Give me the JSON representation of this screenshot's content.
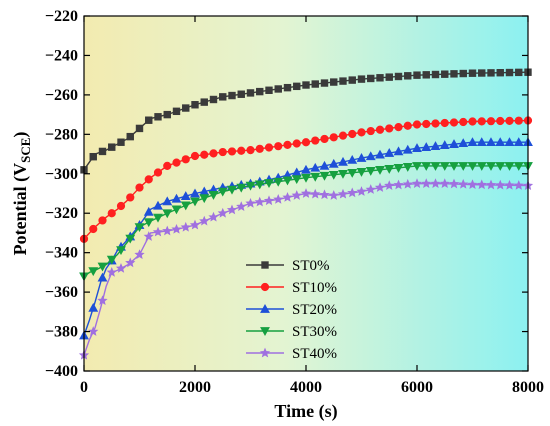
{
  "chart_data": {
    "type": "line",
    "xlabel": "Time (s)",
    "ylabel": {
      "main": "Potential (V",
      "sub": "SCE",
      "close": ")"
    },
    "xlim": [
      0,
      8000
    ],
    "ylim": [
      -400,
      -220
    ],
    "xticks": [
      0,
      2000,
      4000,
      6000,
      8000
    ],
    "yticks": [
      -220,
      -240,
      -260,
      -280,
      -300,
      -320,
      -340,
      -360,
      -380,
      -400
    ],
    "xtick_labels": [
      "0",
      "2000",
      "4000",
      "6000",
      "8000"
    ],
    "ytick_labels": [
      "−220",
      "−240",
      "−260",
      "−280",
      "−300",
      "−320",
      "−340",
      "−360",
      "−380",
      "−400"
    ],
    "grid": false,
    "legend_position": "bottom-center",
    "background": "gradient yellow to cyan",
    "series": [
      {
        "name": "ST0%",
        "color": "#3a3a3a",
        "marker": "square",
        "x": [
          0,
          100,
          200,
          400,
          600,
          800,
          1000,
          1200,
          1500,
          2000,
          2500,
          3000,
          3500,
          4000,
          5000,
          6000,
          7000,
          8000
        ],
        "y": [
          -298,
          -294,
          -290,
          -288,
          -285,
          -282,
          -277,
          -272,
          -270,
          -265,
          -261,
          -259,
          -257,
          -255,
          -252,
          -250,
          -249,
          -248.5
        ]
      },
      {
        "name": "ST10%",
        "color": "#ff2020",
        "marker": "circle",
        "x": [
          0,
          100,
          200,
          400,
          600,
          800,
          1000,
          1200,
          1500,
          2000,
          2500,
          3000,
          3500,
          4000,
          5000,
          6000,
          7000,
          8000
        ],
        "y": [
          -333,
          -330,
          -327,
          -322,
          -318,
          -313,
          -307,
          -302,
          -296,
          -291,
          -289,
          -288,
          -286,
          -284,
          -279,
          -275,
          -273.5,
          -273
        ]
      },
      {
        "name": "ST20%",
        "color": "#1e50d8",
        "marker": "triangle-up",
        "x": [
          0,
          100,
          200,
          300,
          400,
          500,
          600,
          800,
          1000,
          1200,
          1500,
          2000,
          2500,
          3000,
          3500,
          4000,
          5000,
          6000,
          7000,
          8000
        ],
        "y": [
          -382,
          -374,
          -365,
          -355,
          -348,
          -344,
          -339,
          -333,
          -326,
          -318,
          -314,
          -310,
          -307,
          -305,
          -302,
          -298,
          -292,
          -287,
          -284,
          -284
        ]
      },
      {
        "name": "ST30%",
        "color": "#16a040",
        "marker": "triangle-down",
        "x": [
          0,
          100,
          200,
          400,
          600,
          800,
          1000,
          1200,
          1500,
          2000,
          2500,
          3000,
          3500,
          4000,
          5000,
          6000,
          7000,
          8000
        ],
        "y": [
          -352,
          -350,
          -349,
          -346,
          -341,
          -334,
          -327,
          -324,
          -320,
          -314,
          -309,
          -306,
          -304,
          -302,
          -299,
          -296,
          -296,
          -296
        ]
      },
      {
        "name": "ST40%",
        "color": "#a070e0",
        "marker": "star",
        "x": [
          0,
          100,
          200,
          300,
          400,
          500,
          600,
          800,
          1000,
          1200,
          1500,
          1700,
          2000,
          2500,
          3000,
          3500,
          4000,
          4500,
          5000,
          5500,
          6000,
          6500,
          7000,
          8000
        ],
        "y": [
          -392,
          -384,
          -378,
          -368,
          -357,
          -350,
          -349,
          -346,
          -341,
          -330,
          -329,
          -328,
          -326,
          -320,
          -315,
          -313,
          -310,
          -311,
          -309,
          -306,
          -305,
          -305,
          -305.5,
          -306
        ]
      }
    ]
  }
}
